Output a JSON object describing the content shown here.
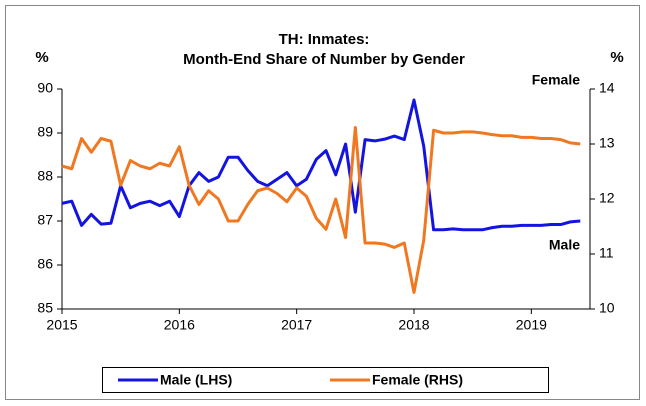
{
  "chart_data": {
    "type": "line",
    "title": [
      "TH: Inmates:",
      "Month-End Share of Number by Gender"
    ],
    "y_label": "%",
    "y2_label": "%",
    "x": [
      2015,
      2015.083,
      2015.167,
      2015.25,
      2015.333,
      2015.417,
      2015.5,
      2015.583,
      2015.667,
      2015.75,
      2015.833,
      2015.917,
      2016,
      2016.083,
      2016.167,
      2016.25,
      2016.333,
      2016.417,
      2016.5,
      2016.583,
      2016.667,
      2016.75,
      2016.833,
      2016.917,
      2017,
      2017.083,
      2017.167,
      2017.25,
      2017.333,
      2017.417,
      2017.5,
      2017.583,
      2017.667,
      2017.75,
      2017.833,
      2017.917,
      2018,
      2018.083,
      2018.167,
      2018.25,
      2018.333,
      2018.417,
      2018.5,
      2018.583,
      2018.667,
      2018.75,
      2018.833,
      2018.917,
      2019,
      2019.083,
      2019.167,
      2019.25,
      2019.333,
      2019.417
    ],
    "series": [
      {
        "name": "Male (LHS)",
        "color": "#1414e0",
        "axis": "y",
        "values": [
          87.4,
          87.45,
          86.9,
          87.15,
          86.93,
          86.95,
          87.8,
          87.3,
          87.4,
          87.45,
          87.35,
          87.45,
          87.1,
          87.8,
          88.1,
          87.9,
          88.0,
          88.45,
          88.45,
          88.15,
          87.9,
          87.8,
          87.95,
          88.1,
          87.8,
          87.95,
          88.4,
          88.6,
          88.05,
          88.75,
          87.2,
          88.85,
          88.82,
          88.86,
          88.93,
          88.85,
          89.75,
          88.7,
          86.8,
          86.8,
          86.82,
          86.8,
          86.8,
          86.8,
          86.85,
          86.88,
          86.88,
          86.9,
          86.9,
          86.9,
          86.92,
          86.92,
          86.98,
          87.0
        ]
      },
      {
        "name": "Female (RHS)",
        "color": "#f07820",
        "axis": "y2",
        "values": [
          12.6,
          12.55,
          13.1,
          12.85,
          13.1,
          13.05,
          12.25,
          12.7,
          12.6,
          12.55,
          12.65,
          12.6,
          12.95,
          12.25,
          11.9,
          12.15,
          12.0,
          11.6,
          11.6,
          11.9,
          12.15,
          12.2,
          12.1,
          11.95,
          12.2,
          12.05,
          11.65,
          11.45,
          12.0,
          11.3,
          13.3,
          11.2,
          11.2,
          11.18,
          11.12,
          11.2,
          10.3,
          11.25,
          13.25,
          13.2,
          13.2,
          13.22,
          13.22,
          13.2,
          13.17,
          13.15,
          13.15,
          13.12,
          13.12,
          13.1,
          13.1,
          13.08,
          13.02,
          13.0
        ]
      }
    ],
    "annotations": [
      {
        "text": "Female",
        "series": 1
      },
      {
        "text": "Male",
        "series": 0
      }
    ],
    "xlim": [
      2015,
      2019.5
    ],
    "xticks": [
      2015,
      2016,
      2017,
      2018,
      2019
    ],
    "ylim": [
      85,
      90
    ],
    "yticks": [
      85,
      86,
      87,
      88,
      89,
      90
    ],
    "y2lim": [
      10,
      14
    ],
    "y2ticks": [
      10,
      11,
      12,
      13,
      14
    ]
  }
}
